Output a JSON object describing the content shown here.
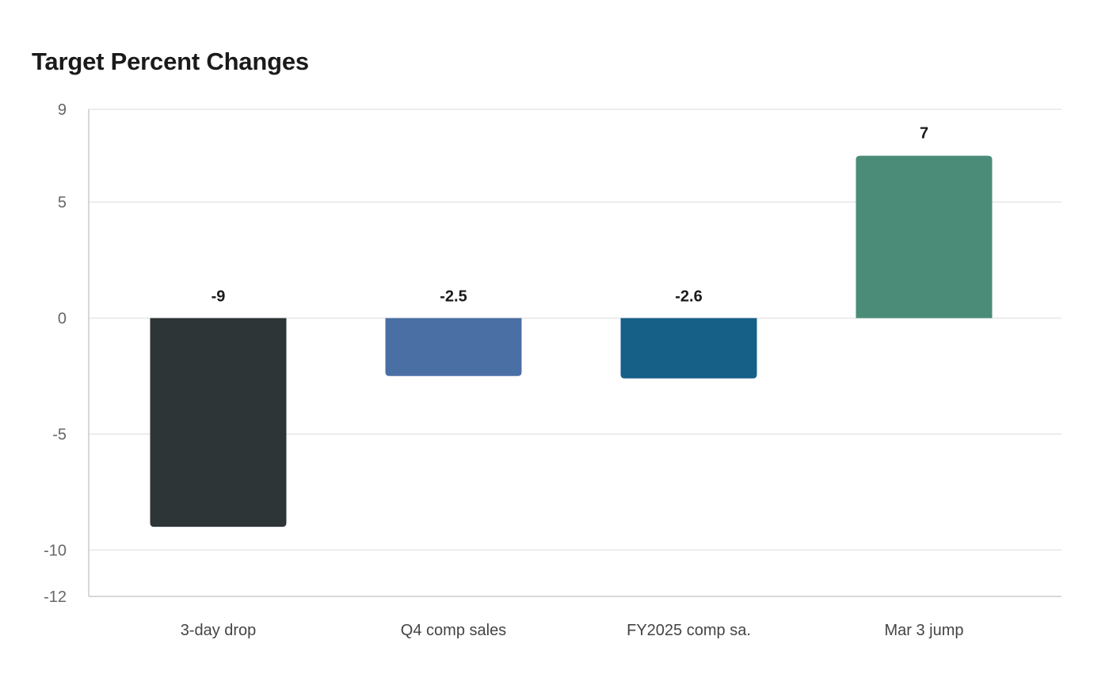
{
  "chart_data": {
    "type": "bar",
    "title": "Target Percent Changes",
    "xlabel": "",
    "ylabel": "",
    "categories": [
      "3-day drop",
      "Q4 comp sales",
      "FY2025 comp sa.",
      "Mar 3 jump"
    ],
    "values": [
      -9,
      -2.5,
      -2.6,
      7
    ],
    "value_labels": [
      "-9",
      "-2.5",
      "-2.6",
      "7"
    ],
    "colors": [
      "#2d3537",
      "#4a6fa5",
      "#166088",
      "#4b8c79"
    ],
    "ylim": [
      -12,
      9
    ],
    "yticks": [
      9,
      5,
      0,
      -5,
      -10,
      -12
    ],
    "grid": true,
    "legend": "none"
  }
}
